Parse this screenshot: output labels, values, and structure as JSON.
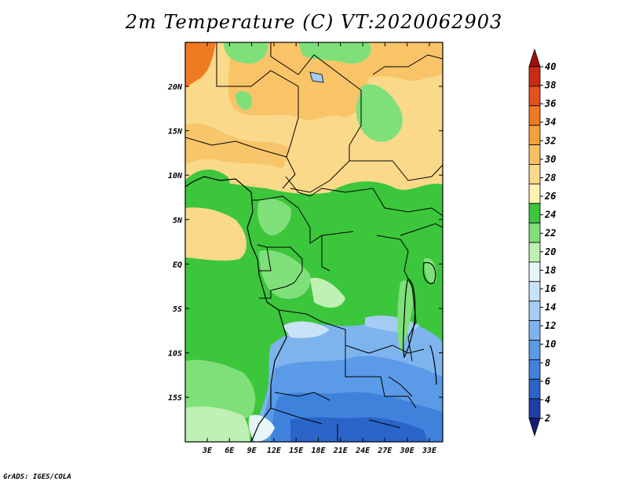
{
  "title": "2m Temperature (C) VT:2020062903",
  "credit": "GrADS: IGES/COLA",
  "map": {
    "lon_ticks": [
      "3E",
      "6E",
      "9E",
      "12E",
      "15E",
      "18E",
      "21E",
      "24E",
      "27E",
      "30E",
      "33E"
    ],
    "lat_ticks": [
      "20N",
      "15N",
      "10N",
      "5N",
      "EQ",
      "5S",
      "10S",
      "15S"
    ]
  },
  "colorbar": {
    "levels": [
      "2",
      "4",
      "6",
      "8",
      "10",
      "12",
      "14",
      "16",
      "18",
      "20",
      "22",
      "24",
      "26",
      "28",
      "30",
      "32",
      "34",
      "36",
      "38",
      "40"
    ],
    "colors": [
      "#1a1a7a",
      "#1e3fa8",
      "#2a64c8",
      "#3f82dc",
      "#5a9ae6",
      "#7eb4ee",
      "#a5cdf4",
      "#c8e2f6",
      "#e6f5f7",
      "#bff0b4",
      "#7fe07a",
      "#3cc63c",
      "#fff2b0",
      "#fbd98a",
      "#f8c062",
      "#f5a13c",
      "#f07a22",
      "#e4521a",
      "#cc2a14",
      "#a10e0e"
    ]
  }
}
